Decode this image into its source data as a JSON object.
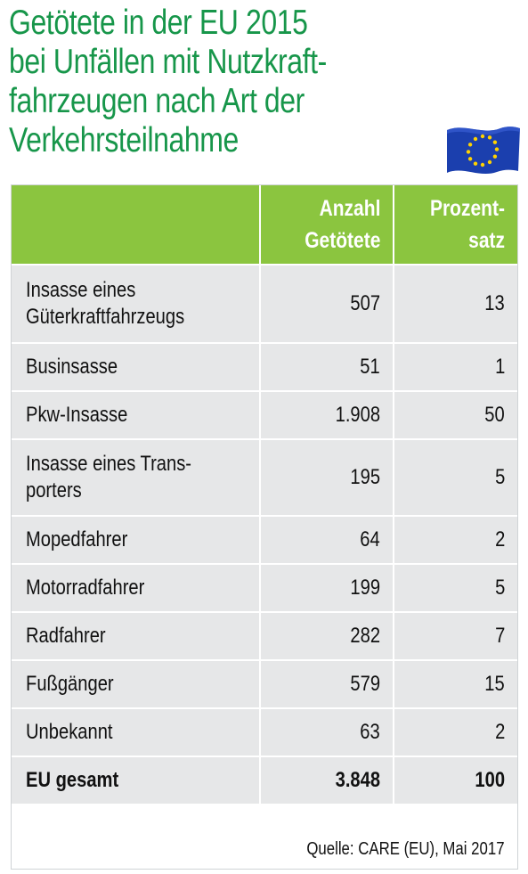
{
  "title_lines": [
    "Getötete in der EU 2015",
    "bei Unfällen mit Nutzkraft-",
    "fahrzeugen nach Art der",
    "Verkehrsteilnahme"
  ],
  "flag_icon": "eu-flag-icon",
  "colors": {
    "title": "#17964a",
    "header_bg": "#8bc53f",
    "row_bg": "#e6e7e8",
    "flag_blue": "#1b3fae",
    "flag_star": "#ffd200"
  },
  "table": {
    "headers": {
      "col1": "",
      "col2_line1": "Anzahl",
      "col2_line2": "Getötete",
      "col3_line1": "Prozent-",
      "col3_line2": "satz"
    },
    "rows": [
      {
        "label_line1": "Insasse eines",
        "label_line2": "Güterkraftfahrzeugs",
        "count": "507",
        "percent": "13"
      },
      {
        "label_line1": "Businsasse",
        "label_line2": "",
        "count": "51",
        "percent": "1"
      },
      {
        "label_line1": "Pkw-Insasse",
        "label_line2": "",
        "count": "1.908",
        "percent": "50"
      },
      {
        "label_line1": "Insasse eines Trans-",
        "label_line2": "porters",
        "count": "195",
        "percent": "5"
      },
      {
        "label_line1": "Mopedfahrer",
        "label_line2": "",
        "count": "64",
        "percent": "2"
      },
      {
        "label_line1": "Motorradfahrer",
        "label_line2": "",
        "count": "199",
        "percent": "5"
      },
      {
        "label_line1": "Radfahrer",
        "label_line2": "",
        "count": "282",
        "percent": "7"
      },
      {
        "label_line1": "Fußgänger",
        "label_line2": "",
        "count": "579",
        "percent": "15"
      },
      {
        "label_line1": "Unbekannt",
        "label_line2": "",
        "count": "63",
        "percent": "2"
      }
    ],
    "total": {
      "label": "EU gesamt",
      "count": "3.848",
      "percent": "100"
    }
  },
  "source": "Quelle: CARE (EU), Mai 2017"
}
